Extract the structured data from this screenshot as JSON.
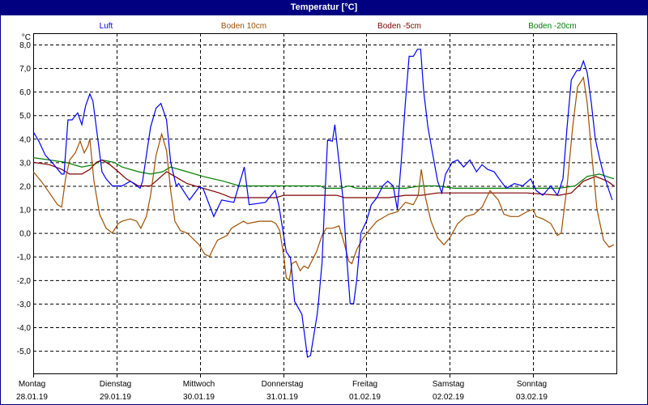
{
  "window": {
    "title": "Temperatur [°C]"
  },
  "colors": {
    "background": "#ffffff",
    "titlebar": "#000080",
    "grid": "#000000"
  },
  "chart_data": {
    "type": "line",
    "title": "Temperatur [°C]",
    "ylabel": "°C",
    "xlabel": "",
    "ylim": [
      -5.96,
      8.48
    ],
    "xlim_hours": [
      0,
      168
    ],
    "grid": true,
    "legend_placement": "top",
    "yticks": [
      8,
      7,
      6,
      5,
      4,
      3,
      2,
      1,
      0,
      -1,
      -2,
      -3,
      -4,
      -5
    ],
    "ytick_labels": [
      "8,0",
      "7,0",
      "6,0",
      "5,0",
      "4,0",
      "3,0",
      "2,0",
      "1,0",
      "0,0",
      "-1,0",
      "-2,0",
      "-3,0",
      "-4,0",
      "-5,0"
    ],
    "xticks": [
      {
        "hour": 0,
        "day": "Montag",
        "date": "28.01.19"
      },
      {
        "hour": 24,
        "day": "Dienstag",
        "date": "29.01.19"
      },
      {
        "hour": 48,
        "day": "Mittwoch",
        "date": "30.01.19"
      },
      {
        "hour": 72,
        "day": "Donnerstag",
        "date": "31.01.19"
      },
      {
        "hour": 96,
        "day": "Freitag",
        "date": "01.02.19"
      },
      {
        "hour": 120,
        "day": "Samstag",
        "date": "02.02.19"
      },
      {
        "hour": 144,
        "day": "Sonntag",
        "date": "03.02.19"
      }
    ],
    "series": [
      {
        "name": "Luft",
        "color": "#0000ff",
        "points": [
          [
            0,
            4.3
          ],
          [
            1.6,
            3.9
          ],
          [
            3.5,
            3.3
          ],
          [
            5.4,
            3.0
          ],
          [
            8.2,
            2.5
          ],
          [
            8.9,
            2.5
          ],
          [
            10.0,
            4.8
          ],
          [
            11.2,
            4.8
          ],
          [
            12.8,
            5.1
          ],
          [
            14.0,
            4.6
          ],
          [
            15.1,
            5.4
          ],
          [
            16.3,
            5.9
          ],
          [
            17.2,
            5.6
          ],
          [
            18.6,
            4.0
          ],
          [
            19.8,
            2.6
          ],
          [
            21.0,
            2.3
          ],
          [
            22.8,
            2.0
          ],
          [
            24.5,
            2.0
          ],
          [
            25.6,
            2.0
          ],
          [
            28.0,
            2.2
          ],
          [
            30.8,
            1.9
          ],
          [
            31.5,
            2.2
          ],
          [
            33.8,
            4.5
          ],
          [
            35.4,
            5.3
          ],
          [
            36.8,
            5.5
          ],
          [
            38.4,
            4.8
          ],
          [
            39.6,
            3.0
          ],
          [
            41.2,
            2.0
          ],
          [
            41.9,
            2.1
          ],
          [
            45.0,
            1.4
          ],
          [
            47.8,
            1.95
          ],
          [
            48.9,
            1.9
          ],
          [
            52.0,
            0.7
          ],
          [
            54.3,
            1.4
          ],
          [
            57.8,
            1.3
          ],
          [
            60.8,
            2.8
          ],
          [
            62.2,
            1.2
          ],
          [
            66.9,
            1.3
          ],
          [
            69.7,
            1.8
          ],
          [
            70.8,
            1.15
          ],
          [
            72.9,
            -0.8
          ],
          [
            74.1,
            -1.05
          ],
          [
            75.3,
            -2.9
          ],
          [
            77.4,
            -3.45
          ],
          [
            79.0,
            -5.27
          ],
          [
            79.9,
            -5.2
          ],
          [
            81.8,
            -3.45
          ],
          [
            82.2,
            -2.9
          ],
          [
            83.2,
            -1.25
          ],
          [
            83.9,
            1.15
          ],
          [
            84.8,
            3.94
          ],
          [
            86.2,
            3.9
          ],
          [
            86.9,
            4.6
          ],
          [
            88.1,
            3.0
          ],
          [
            89.2,
            1.5
          ],
          [
            90.4,
            -1.2
          ],
          [
            91.3,
            -3.0
          ],
          [
            92.3,
            -3.0
          ],
          [
            93.2,
            -2.0
          ],
          [
            94.4,
            0
          ],
          [
            96.0,
            0.5
          ],
          [
            97.4,
            1.2
          ],
          [
            99.0,
            1.5
          ],
          [
            100.7,
            2.0
          ],
          [
            102.1,
            2.2
          ],
          [
            103.7,
            2.0
          ],
          [
            104.9,
            1.0
          ],
          [
            106.0,
            3.0
          ],
          [
            107.2,
            5.5
          ],
          [
            108.3,
            7.5
          ],
          [
            109.5,
            7.5
          ],
          [
            110.7,
            7.8
          ],
          [
            111.6,
            7.8
          ],
          [
            112.5,
            6.0
          ],
          [
            113.7,
            4.5
          ],
          [
            114.9,
            3.5
          ],
          [
            116.5,
            2.2
          ],
          [
            117.7,
            1.7
          ],
          [
            118.8,
            2.5
          ],
          [
            120.7,
            3.0
          ],
          [
            122.3,
            3.1
          ],
          [
            124.0,
            2.8
          ],
          [
            125.8,
            3.1
          ],
          [
            127.7,
            2.6
          ],
          [
            129.3,
            2.9
          ],
          [
            130.9,
            2.7
          ],
          [
            132.8,
            2.6
          ],
          [
            134.7,
            2.2
          ],
          [
            136.3,
            1.9
          ],
          [
            138.6,
            2.1
          ],
          [
            141.0,
            2.0
          ],
          [
            143.3,
            2.3
          ],
          [
            144.9,
            1.8
          ],
          [
            146.8,
            1.6
          ],
          [
            149.1,
            2.0
          ],
          [
            151.0,
            1.6
          ],
          [
            152.6,
            2.3
          ],
          [
            153.8,
            4.5
          ],
          [
            155.0,
            6.5
          ],
          [
            156.6,
            6.9
          ],
          [
            157.5,
            6.9
          ],
          [
            158.5,
            7.3
          ],
          [
            159.6,
            6.8
          ],
          [
            160.8,
            5.5
          ],
          [
            161.9,
            4.0
          ],
          [
            163.1,
            3.2
          ],
          [
            164.3,
            2.5
          ],
          [
            165.4,
            2.0
          ],
          [
            166.8,
            1.4
          ]
        ]
      },
      {
        "name": "Boden 10cm",
        "color": "#a05000",
        "points": [
          [
            0,
            2.6
          ],
          [
            2.3,
            2.2
          ],
          [
            4.7,
            1.7
          ],
          [
            7.0,
            1.2
          ],
          [
            8.2,
            1.1
          ],
          [
            9.3,
            2.3
          ],
          [
            10.5,
            3.1
          ],
          [
            12.1,
            3.4
          ],
          [
            13.5,
            3.9
          ],
          [
            14.7,
            3.4
          ],
          [
            15.8,
            3.7
          ],
          [
            16.3,
            4.0
          ],
          [
            17.5,
            2.2
          ],
          [
            19.1,
            0.8
          ],
          [
            21.0,
            0.2
          ],
          [
            22.8,
            0.0
          ],
          [
            24.5,
            0.4
          ],
          [
            25.6,
            0.5
          ],
          [
            28.0,
            0.6
          ],
          [
            29.8,
            0.5
          ],
          [
            31.0,
            0.2
          ],
          [
            32.6,
            0.7
          ],
          [
            33.8,
            1.6
          ],
          [
            35.4,
            3.3
          ],
          [
            37.0,
            4.2
          ],
          [
            38.4,
            3.5
          ],
          [
            39.6,
            1.8
          ],
          [
            40.8,
            0.5
          ],
          [
            42.4,
            0.1
          ],
          [
            44.3,
            0.0
          ],
          [
            47.8,
            -0.5
          ],
          [
            49.4,
            -0.9
          ],
          [
            50.8,
            -1.0
          ],
          [
            51.7,
            -0.7
          ],
          [
            53.1,
            -0.3
          ],
          [
            55.9,
            -0.1
          ],
          [
            57.1,
            0.2
          ],
          [
            59.4,
            0.4
          ],
          [
            60.6,
            0.5
          ],
          [
            61.7,
            0.4
          ],
          [
            65.2,
            0.5
          ],
          [
            68.7,
            0.5
          ],
          [
            69.9,
            0.4
          ],
          [
            71.0,
            0.1
          ],
          [
            72.2,
            -1.0
          ],
          [
            72.9,
            -1.9
          ],
          [
            73.8,
            -2.0
          ],
          [
            74.5,
            -1.3
          ],
          [
            75.7,
            -1.2
          ],
          [
            76.9,
            -1.6
          ],
          [
            78.0,
            -1.4
          ],
          [
            79.2,
            -1.5
          ],
          [
            81.6,
            -0.8
          ],
          [
            83.2,
            -0.1
          ],
          [
            84.4,
            0.2
          ],
          [
            86.2,
            0.2
          ],
          [
            88.1,
            0.3
          ],
          [
            89.7,
            -0.5
          ],
          [
            90.9,
            -1.2
          ],
          [
            91.8,
            -1.3
          ],
          [
            93.2,
            -0.7
          ],
          [
            95.1,
            -0.2
          ],
          [
            96.7,
            0.1
          ],
          [
            99.0,
            0.5
          ],
          [
            102.5,
            0.8
          ],
          [
            104.9,
            0.9
          ],
          [
            107.2,
            1.3
          ],
          [
            109.5,
            1.2
          ],
          [
            110.9,
            1.6
          ],
          [
            111.8,
            2.7
          ],
          [
            113.0,
            1.5
          ],
          [
            114.6,
            0.5
          ],
          [
            116.5,
            -0.2
          ],
          [
            118.3,
            -0.5
          ],
          [
            120.0,
            -0.2
          ],
          [
            122.3,
            0.4
          ],
          [
            124.6,
            0.7
          ],
          [
            127.0,
            0.8
          ],
          [
            129.3,
            1.1
          ],
          [
            131.6,
            1.8
          ],
          [
            134.0,
            1.4
          ],
          [
            135.6,
            0.8
          ],
          [
            137.5,
            0.7
          ],
          [
            139.8,
            0.7
          ],
          [
            142.2,
            0.9
          ],
          [
            144.0,
            1.0
          ],
          [
            144.9,
            0.7
          ],
          [
            146.8,
            0.6
          ],
          [
            149.1,
            0.4
          ],
          [
            151.0,
            -0.1
          ],
          [
            152.1,
            0.0
          ],
          [
            153.8,
            2.0
          ],
          [
            155.4,
            4.5
          ],
          [
            156.8,
            6.2
          ],
          [
            158.5,
            6.6
          ],
          [
            159.6,
            5.5
          ],
          [
            160.8,
            3.5
          ],
          [
            162.4,
            1.0
          ],
          [
            164.3,
            -0.3
          ],
          [
            165.9,
            -0.6
          ],
          [
            167.3,
            -0.5
          ]
        ]
      },
      {
        "name": "Boden -5cm",
        "color": "#800000",
        "points": [
          [
            0,
            3.0
          ],
          [
            4.7,
            2.9
          ],
          [
            8.2,
            2.7
          ],
          [
            10.5,
            2.5
          ],
          [
            14.0,
            2.5
          ],
          [
            16.3,
            2.7
          ],
          [
            18.2,
            3.0
          ],
          [
            19.8,
            3.1
          ],
          [
            22.1,
            2.9
          ],
          [
            24.5,
            2.6
          ],
          [
            26.8,
            2.3
          ],
          [
            30.3,
            2.0
          ],
          [
            33.8,
            2.0
          ],
          [
            36.1,
            2.3
          ],
          [
            38.4,
            2.6
          ],
          [
            40.8,
            2.4
          ],
          [
            44.3,
            2.1
          ],
          [
            48.9,
            1.9
          ],
          [
            53.6,
            1.7
          ],
          [
            57.1,
            1.5
          ],
          [
            62.9,
            1.5
          ],
          [
            69.9,
            1.5
          ],
          [
            72.2,
            1.6
          ],
          [
            79.2,
            1.6
          ],
          [
            83.9,
            1.6
          ],
          [
            87.4,
            1.6
          ],
          [
            89.7,
            1.5
          ],
          [
            95.6,
            1.5
          ],
          [
            102.5,
            1.5
          ],
          [
            107.2,
            1.6
          ],
          [
            111.8,
            1.6
          ],
          [
            116.5,
            1.7
          ],
          [
            121.2,
            1.7
          ],
          [
            130.5,
            1.7
          ],
          [
            142.2,
            1.7
          ],
          [
            151.5,
            1.6
          ],
          [
            155.0,
            1.7
          ],
          [
            158.5,
            2.2
          ],
          [
            162.0,
            2.4
          ],
          [
            165.4,
            2.2
          ],
          [
            167.3,
            2.0
          ]
        ]
      },
      {
        "name": "Boden -20cm",
        "color": "#008000",
        "points": [
          [
            0,
            3.2
          ],
          [
            4.7,
            3.1
          ],
          [
            9.3,
            3.0
          ],
          [
            14.0,
            2.8
          ],
          [
            17.5,
            2.9
          ],
          [
            19.8,
            3.1
          ],
          [
            23.3,
            3.0
          ],
          [
            25.6,
            2.8
          ],
          [
            30.3,
            2.6
          ],
          [
            33.8,
            2.5
          ],
          [
            37.3,
            2.6
          ],
          [
            39.6,
            2.8
          ],
          [
            44.3,
            2.6
          ],
          [
            48.9,
            2.4
          ],
          [
            54.8,
            2.2
          ],
          [
            59.4,
            2.0
          ],
          [
            69.9,
            2.0
          ],
          [
            79.2,
            2.0
          ],
          [
            82.7,
            2.0
          ],
          [
            83.9,
            1.9
          ],
          [
            88.5,
            1.9
          ],
          [
            90.9,
            2.0
          ],
          [
            93.2,
            1.9
          ],
          [
            97.9,
            1.9
          ],
          [
            107.2,
            1.9
          ],
          [
            111.8,
            2.0
          ],
          [
            116.5,
            2.0
          ],
          [
            121.2,
            1.9
          ],
          [
            130.5,
            1.9
          ],
          [
            142.2,
            1.9
          ],
          [
            151.5,
            1.9
          ],
          [
            156.1,
            2.0
          ],
          [
            159.6,
            2.4
          ],
          [
            163.1,
            2.5
          ],
          [
            167.3,
            2.3
          ]
        ]
      }
    ]
  }
}
